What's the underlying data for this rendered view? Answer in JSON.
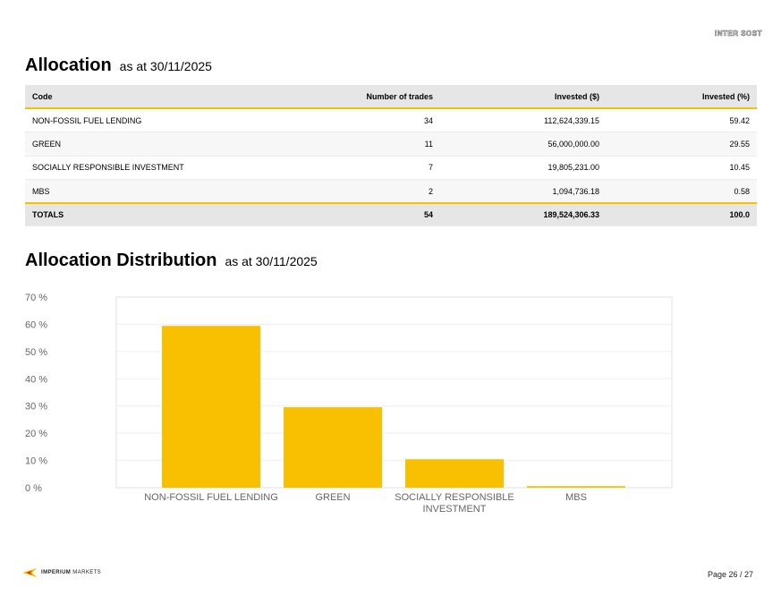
{
  "header": {
    "corner_mark": "INTER SOST"
  },
  "allocation": {
    "title": "Allocation",
    "subtitle": "as at 30/11/2025",
    "columns": [
      "Code",
      "Number of trades",
      "Invested ($)",
      "Invested (%)"
    ],
    "rows": [
      {
        "code": "NON-FOSSIL FUEL LENDING",
        "trades": "34",
        "invested": "112,624,339.15",
        "pct": "59.42"
      },
      {
        "code": "GREEN",
        "trades": "11",
        "invested": "56,000,000.00",
        "pct": "29.55"
      },
      {
        "code": "SOCIALLY RESPONSIBLE INVESTMENT",
        "trades": "7",
        "invested": "19,805,231.00",
        "pct": "10.45"
      },
      {
        "code": "MBS",
        "trades": "2",
        "invested": "1,094,736.18",
        "pct": "0.58"
      }
    ],
    "totals": {
      "label": "TOTALS",
      "trades": "54",
      "invested": "189,524,306.33",
      "pct": "100.0"
    }
  },
  "distribution": {
    "title": "Allocation Distribution",
    "subtitle": "as at 30/11/2025"
  },
  "chart_data": {
    "type": "bar",
    "categories": [
      "NON-FOSSIL FUEL LENDING",
      "GREEN",
      "SOCIALLY RESPONSIBLE INVESTMENT",
      "MBS"
    ],
    "category_label_lines": [
      [
        "NON-FOSSIL FUEL LENDING"
      ],
      [
        "GREEN"
      ],
      [
        "SOCIALLY RESPONSIBLE",
        "INVESTMENT"
      ],
      [
        "MBS"
      ]
    ],
    "values": [
      59.42,
      29.55,
      10.45,
      0.58
    ],
    "ylim": [
      0,
      70
    ],
    "yticks": [
      0,
      10,
      20,
      30,
      40,
      50,
      60,
      70
    ],
    "ytick_labels": [
      "0 %",
      "10 %",
      "20 %",
      "30 %",
      "40 %",
      "50 %",
      "60 %",
      "70 %"
    ],
    "grid": true,
    "bar_color": "#f8c000",
    "title": "",
    "xlabel": "",
    "ylabel": ""
  },
  "footer": {
    "logo_icon": "imperium-chevron-icon",
    "brand_bold": "IMPERIUM",
    "brand_light": "MARKETS",
    "page": "Page 26 / 27"
  }
}
